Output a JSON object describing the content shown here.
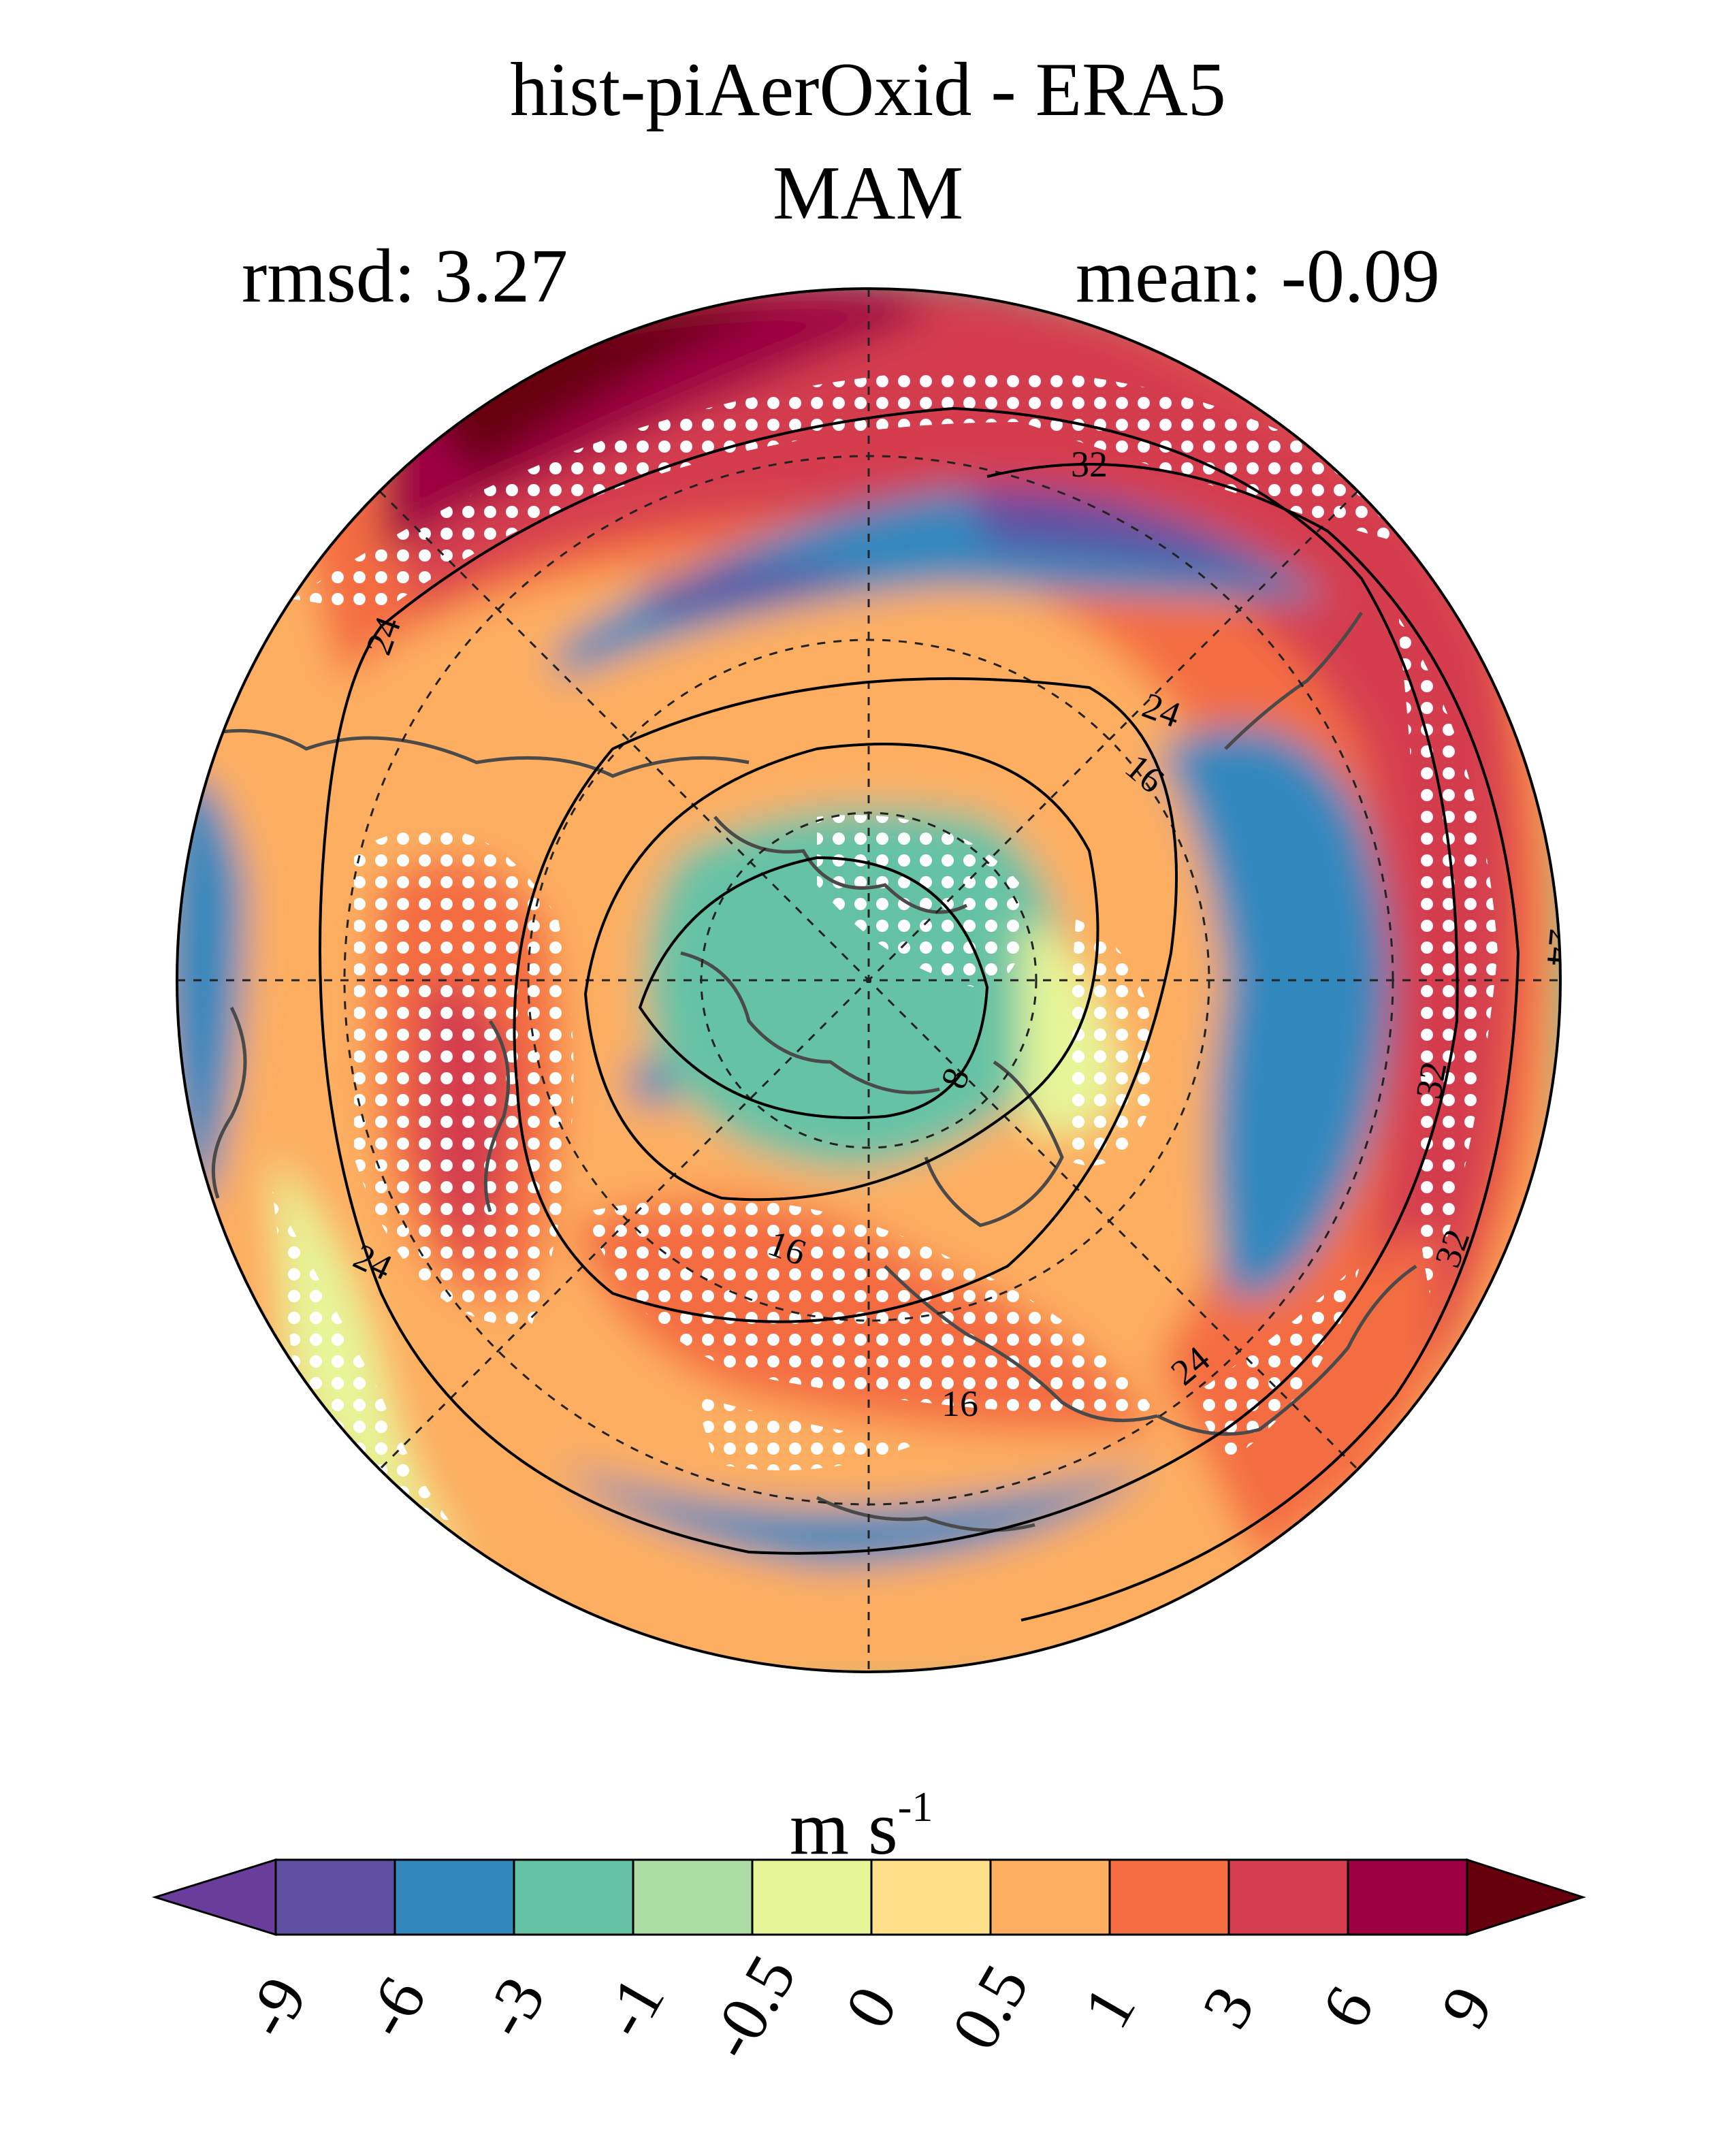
{
  "figure": {
    "title": "hist-piAerOxid - ERA5",
    "subtitle": "MAM",
    "rmsd_text": "rmsd: 3.27",
    "mean_text": "mean: -0.09"
  },
  "map": {
    "projection": "north-polar-stereographic",
    "field": "wind speed difference (model minus reanalysis)",
    "stippling": "white dots mark significant grid points",
    "contour_labels": [
      "32",
      "24",
      "24",
      "16",
      "8",
      "16",
      "24",
      "16",
      "24",
      "32",
      "32",
      "24"
    ],
    "graticule": "dashed"
  },
  "colorbar": {
    "units_base": "m s",
    "units_exp": "-1",
    "tick_labels": [
      "-9",
      "-6",
      "-3",
      "-1",
      "-0.5",
      "0",
      "0.5",
      "1",
      "3",
      "6",
      "9"
    ],
    "colors": [
      "#6a3d9a",
      "#5e4fa2",
      "#3288bd",
      "#66c2a5",
      "#abdda4",
      "#e6f598",
      "#fee08b",
      "#fdae61",
      "#f46d43",
      "#d53e4f",
      "#9e0142",
      "#67000d"
    ]
  }
}
